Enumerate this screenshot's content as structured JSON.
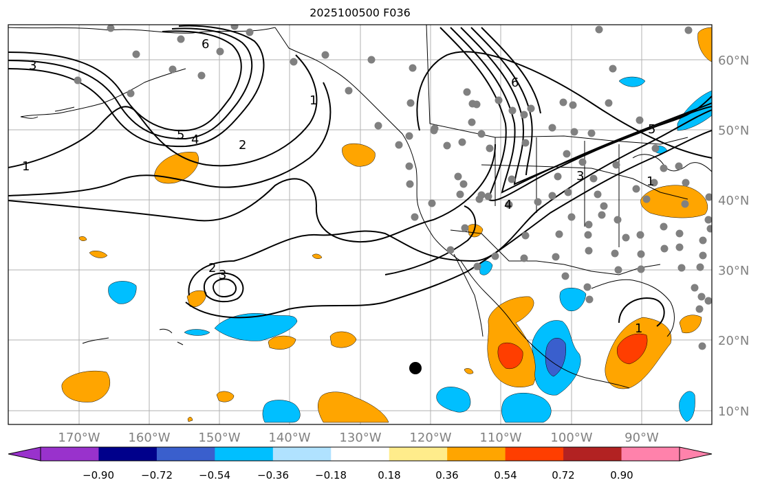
{
  "title": "2025100500 F036",
  "map": {
    "lon_labels": [
      "170°W",
      "160°W",
      "150°W",
      "140°W",
      "130°W",
      "120°W",
      "110°W",
      "100°W",
      "90°W"
    ],
    "lat_labels": [
      "60°N",
      "50°N",
      "40°N",
      "30°N",
      "20°N",
      "10°N"
    ],
    "contour_labels": [
      "6",
      "3",
      "5",
      "4",
      "2",
      "1",
      "1",
      "6",
      "5",
      "3",
      "4",
      "2",
      "3",
      "1",
      "1"
    ],
    "colors": {
      "axis_text": "#808080",
      "grid": "#b0b0b0",
      "station_dot": "#808080",
      "contour": "#000000",
      "coast": "#000000"
    }
  },
  "colorbar": {
    "tick_labels": [
      "−0.90",
      "−0.72",
      "−0.54",
      "−0.36",
      "−0.18",
      "0.18",
      "0.36",
      "0.54",
      "0.72",
      "0.90"
    ],
    "colors": [
      "#9932cc",
      "#00008b",
      "#3a5fcd",
      "#00bfff",
      "#b0e2ff",
      "#ffffff",
      "#ffec8b",
      "#ffa500",
      "#ff3e00",
      "#b22222",
      "#ff82ab"
    ]
  }
}
